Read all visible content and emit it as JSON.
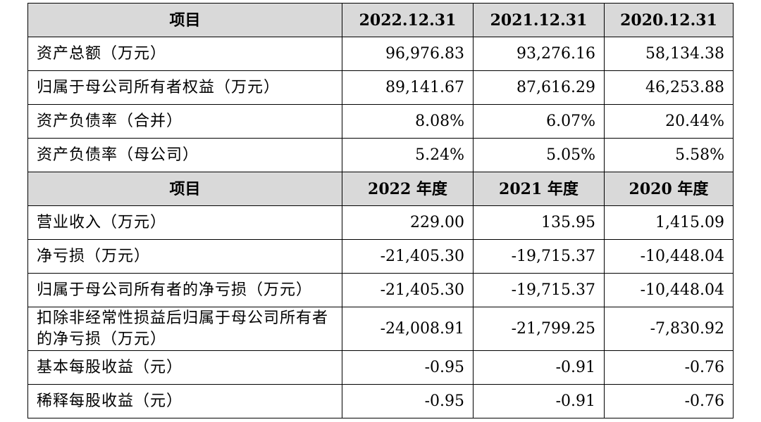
{
  "section1": {
    "header": [
      "项目",
      "2022.12.31",
      "2021.12.31",
      "2020.12.31"
    ],
    "rows": [
      [
        "资产总额（万元）",
        "96,976.83",
        "93,276.16",
        "58,134.38"
      ],
      [
        "归属于母公司所有者权益（万元）",
        "89,141.67",
        "87,616.29",
        "46,253.88"
      ],
      [
        "资产负债率（合并）",
        "8.08%",
        "6.07%",
        "20.44%"
      ],
      [
        "资产负债率（母公司）",
        "5.24%",
        "5.05%",
        "5.58%"
      ]
    ]
  },
  "section2": {
    "header": [
      "项目",
      "2022 年度",
      "2021 年度",
      "2020 年度"
    ],
    "rows": [
      [
        "营业收入（万元）",
        "229.00",
        "135.95",
        "1,415.09"
      ],
      [
        "净亏损（万元）",
        "-21,405.30",
        "-19,715.37",
        "-10,448.04"
      ],
      [
        "归属于母公司所有者的净亏损（万元）",
        "-21,405.30",
        "-19,715.37",
        "-10,448.04"
      ],
      [
        "扣除非经常性损益后归属于母公司所有者的净亏损（万元）",
        "-24,008.91",
        "-21,799.25",
        "-7,830.92"
      ],
      [
        "基本每股收益（元）",
        "-0.95",
        "-0.91",
        "-0.76"
      ],
      [
        "稀释每股收益（元）",
        "-0.95",
        "-0.91",
        "-0.76"
      ]
    ]
  }
}
